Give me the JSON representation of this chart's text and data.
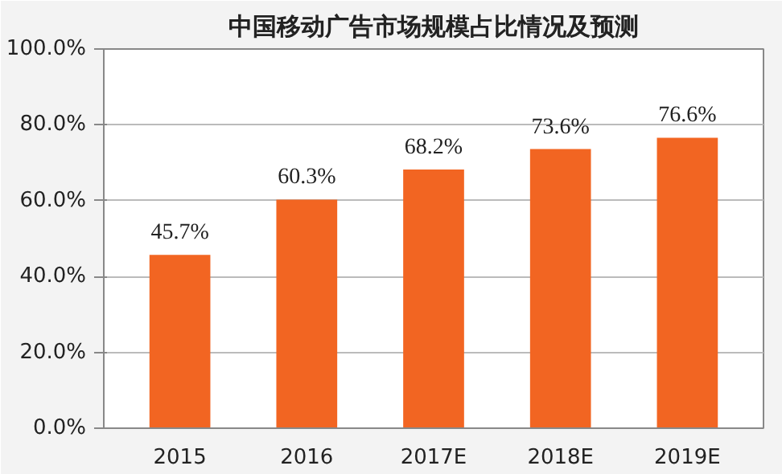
{
  "chart_data": {
    "type": "bar",
    "title": "中国移动广告市场规模占比情况及预测",
    "categories": [
      "2015",
      "2016",
      "2017E",
      "2018E",
      "2019E"
    ],
    "values": [
      45.7,
      60.3,
      68.2,
      73.6,
      76.6
    ],
    "value_labels": [
      "45.7%",
      "60.3%",
      "68.2%",
      "73.6%",
      "76.6%"
    ],
    "color": "#f26522",
    "ylim": [
      0,
      100
    ],
    "yticks": [
      {
        "value": 0,
        "label": "0.0%"
      },
      {
        "value": 20,
        "label": "20.0%"
      },
      {
        "value": 40,
        "label": "40.0%"
      },
      {
        "value": 60,
        "label": "60.0%"
      },
      {
        "value": 80,
        "label": "80.0%"
      },
      {
        "value": 100,
        "label": "100.0%"
      }
    ],
    "grid": "y"
  }
}
